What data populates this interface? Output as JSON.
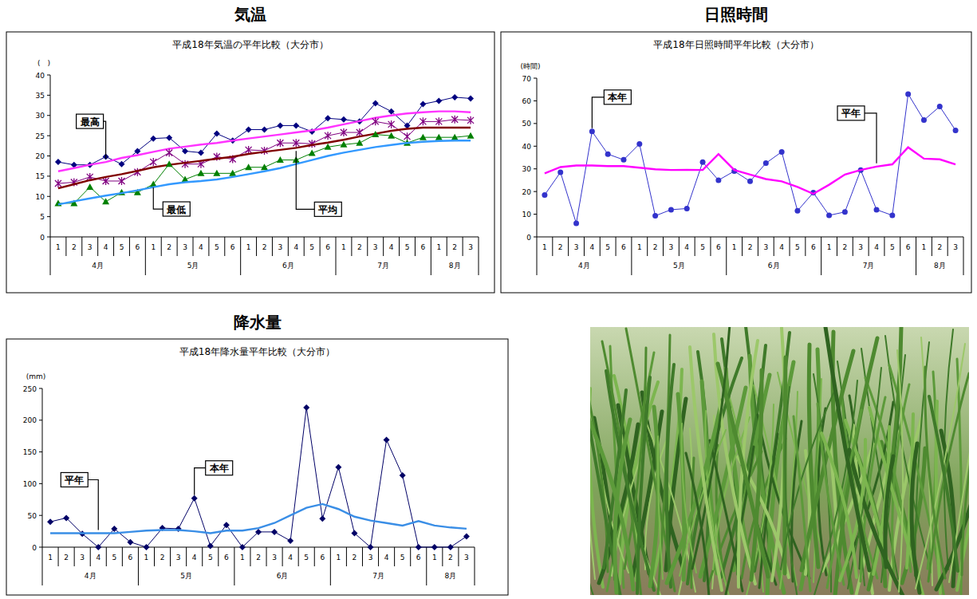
{
  "chart_data": [
    {
      "type": "line",
      "heading": "気温",
      "title": "平成18年気温の平年比較（大分市）",
      "y_label": "(　)",
      "categories": [
        "1",
        "2",
        "3",
        "4",
        "5",
        "6",
        "1",
        "2",
        "3",
        "4",
        "5",
        "6",
        "1",
        "2",
        "3",
        "4",
        "5",
        "6",
        "1",
        "2",
        "3",
        "4",
        "5",
        "6",
        "1",
        "2",
        "3"
      ],
      "category_groups": [
        {
          "label": "4月",
          "count": 6
        },
        {
          "label": "5月",
          "count": 6
        },
        {
          "label": "6月",
          "count": 6
        },
        {
          "label": "7月",
          "count": 6
        },
        {
          "label": "8月",
          "count": 3
        }
      ],
      "ylim": [
        0,
        40
      ],
      "yticks": [
        0,
        5,
        10,
        15,
        20,
        25,
        30,
        35,
        40
      ],
      "grid": false,
      "series": [
        {
          "color": "#000080",
          "marker": "diamond",
          "line_style": "solid",
          "values": [
            18.5,
            17.8,
            17.8,
            19.8,
            18.0,
            21.2,
            24.3,
            24.5,
            21.2,
            20.8,
            25.5,
            23.8,
            26.5,
            26.5,
            27.5,
            27.5,
            26.0,
            29.3,
            29.0,
            28.5,
            33.0,
            31.0,
            27.5,
            32.8,
            33.6,
            34.5,
            34.2
          ]
        },
        {
          "color": "#ff33ff",
          "marker": "none",
          "line_style": "solid",
          "values": [
            16.2,
            17.0,
            17.8,
            18.5,
            19.5,
            20.2,
            21.0,
            21.8,
            22.3,
            22.8,
            23.2,
            23.8,
            24.3,
            24.8,
            25.3,
            25.8,
            26.3,
            27.0,
            27.8,
            28.6,
            29.4,
            30.0,
            30.5,
            30.8,
            31.0,
            31.0,
            30.8
          ]
        },
        {
          "color": "#800080",
          "marker": "asterisk",
          "line_style": "solid",
          "values": [
            13.2,
            13.5,
            14.8,
            13.8,
            13.8,
            16.0,
            18.5,
            20.8,
            18.0,
            18.0,
            19.8,
            19.2,
            21.5,
            21.3,
            23.2,
            23.2,
            23.0,
            25.0,
            25.8,
            25.8,
            28.5,
            27.8,
            24.8,
            28.5,
            28.5,
            29.0,
            28.8
          ]
        },
        {
          "color": "#800000",
          "marker": "none",
          "line_style": "solid",
          "values": [
            12.0,
            13.0,
            14.0,
            14.8,
            15.5,
            16.3,
            17.2,
            17.8,
            18.3,
            18.8,
            19.3,
            19.8,
            20.5,
            21.0,
            21.5,
            22.0,
            22.7,
            23.3,
            24.0,
            24.8,
            25.5,
            26.2,
            26.7,
            27.0,
            27.0,
            27.0,
            27.0
          ]
        },
        {
          "color": "#008000",
          "marker": "triangle",
          "line_style": "solid",
          "values": [
            8.3,
            8.3,
            12.3,
            8.7,
            11.0,
            11.0,
            13.0,
            18.0,
            14.2,
            15.7,
            15.7,
            15.7,
            17.2,
            17.2,
            19.0,
            19.0,
            20.7,
            22.2,
            22.8,
            23.2,
            25.3,
            25.0,
            23.2,
            24.6,
            24.6,
            24.6,
            25.0
          ]
        },
        {
          "color": "#3399ff",
          "marker": "none",
          "line_style": "solid",
          "values": [
            8.0,
            8.8,
            9.5,
            10.2,
            10.8,
            11.5,
            12.3,
            13.0,
            13.5,
            13.8,
            14.2,
            14.8,
            15.5,
            16.2,
            17.0,
            18.0,
            19.0,
            20.0,
            20.8,
            21.5,
            22.2,
            22.7,
            23.2,
            23.5,
            23.7,
            23.8,
            23.8
          ]
        }
      ],
      "annotations": [
        {
          "text": "最高",
          "series": 1,
          "index": 3
        },
        {
          "text": "最低",
          "series": 4,
          "index": 6
        },
        {
          "text": "平均",
          "series": 3,
          "index": 15
        }
      ]
    },
    {
      "type": "line",
      "heading": "日照時間",
      "title": "平成18年日照時間平年比較（大分市）",
      "y_label": "(時間)",
      "categories": [
        "1",
        "2",
        "3",
        "4",
        "5",
        "6",
        "1",
        "2",
        "3",
        "4",
        "5",
        "6",
        "1",
        "2",
        "3",
        "4",
        "5",
        "6",
        "1",
        "2",
        "3",
        "4",
        "5",
        "6",
        "1",
        "2",
        "3"
      ],
      "category_groups": [
        {
          "label": "4月",
          "count": 6
        },
        {
          "label": "5月",
          "count": 6
        },
        {
          "label": "6月",
          "count": 6
        },
        {
          "label": "7月",
          "count": 6
        },
        {
          "label": "8月",
          "count": 3
        }
      ],
      "ylim": [
        0,
        70
      ],
      "yticks": [
        0,
        10,
        20,
        30,
        40,
        50,
        60,
        70
      ],
      "grid": false,
      "series": [
        {
          "color": "#3333cc",
          "marker": "circle",
          "line_style": "solid",
          "values": [
            18.5,
            28.5,
            6.0,
            46.5,
            36.5,
            34.0,
            41.0,
            9.3,
            12.0,
            12.5,
            33.0,
            25.0,
            29.0,
            24.5,
            32.5,
            37.5,
            11.5,
            19.5,
            9.5,
            11.0,
            29.5,
            12.0,
            9.5,
            63.0,
            51.5,
            57.5,
            47.0
          ]
        },
        {
          "color": "#ff00ff",
          "marker": "none",
          "line_style": "solid",
          "values": [
            28.0,
            30.8,
            31.5,
            31.5,
            31.2,
            31.2,
            30.5,
            29.8,
            29.5,
            29.6,
            29.5,
            36.5,
            29.5,
            27.5,
            25.5,
            24.5,
            22.0,
            19.0,
            23.0,
            27.5,
            29.5,
            31.0,
            32.0,
            39.5,
            34.5,
            34.2,
            32.0
          ]
        }
      ],
      "annotations": [
        {
          "text": "本年",
          "series": 0,
          "index": 3
        },
        {
          "text": "平年",
          "series": 1,
          "index": 21
        }
      ]
    },
    {
      "type": "line",
      "heading": "降水量",
      "title": "平成18年降水量平年比較（大分市）",
      "y_label": "(mm)",
      "categories": [
        "1",
        "2",
        "3",
        "4",
        "5",
        "6",
        "1",
        "2",
        "3",
        "4",
        "5",
        "6",
        "1",
        "2",
        "3",
        "4",
        "5",
        "6",
        "1",
        "2",
        "3",
        "4",
        "5",
        "6",
        "1",
        "2",
        "3"
      ],
      "category_groups": [
        {
          "label": "4月",
          "count": 6
        },
        {
          "label": "5月",
          "count": 6
        },
        {
          "label": "6月",
          "count": 6
        },
        {
          "label": "7月",
          "count": 6
        },
        {
          "label": "8月",
          "count": 3
        }
      ],
      "ylim": [
        0,
        250
      ],
      "yticks": [
        0,
        50,
        100,
        150,
        200,
        250
      ],
      "grid": false,
      "series": [
        {
          "color": "#000066",
          "marker": "diamond",
          "line_style": "solid",
          "values": [
            40,
            46,
            21,
            0,
            29,
            8,
            0,
            30,
            29,
            77,
            2,
            35,
            0,
            24,
            24,
            10,
            220,
            45,
            126,
            22,
            0,
            169,
            113,
            0,
            0,
            0,
            17
          ]
        },
        {
          "color": "#3a8ee6",
          "marker": "none",
          "line_style": "solid",
          "values": [
            22,
            22,
            22,
            22,
            22,
            24,
            26,
            27,
            27,
            25,
            22,
            26,
            26,
            30,
            38,
            50,
            62,
            68,
            60,
            48,
            42,
            38,
            34,
            41,
            34,
            31,
            29
          ]
        }
      ],
      "annotations": [
        {
          "text": "平年",
          "series": 1,
          "index": 3
        },
        {
          "text": "本年",
          "series": 0,
          "index": 9
        }
      ]
    }
  ]
}
